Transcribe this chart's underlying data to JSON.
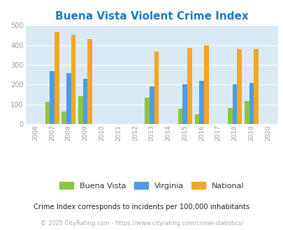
{
  "title": "Buena Vista Violent Crime Index",
  "years": [
    2006,
    2007,
    2008,
    2009,
    2010,
    2011,
    2012,
    2013,
    2014,
    2015,
    2016,
    2017,
    2018,
    2019,
    2020
  ],
  "buena_vista": [
    0,
    113,
    65,
    142,
    0,
    0,
    0,
    135,
    0,
    79,
    51,
    0,
    83,
    116,
    0
  ],
  "virginia": [
    0,
    270,
    259,
    228,
    0,
    0,
    0,
    190,
    0,
    200,
    220,
    0,
    202,
    210,
    0
  ],
  "national": [
    0,
    467,
    453,
    432,
    0,
    0,
    0,
    368,
    0,
    384,
    398,
    0,
    381,
    381,
    0
  ],
  "color_bv": "#8dc63f",
  "color_va": "#4d9de0",
  "color_nat": "#f5a623",
  "bg_color": "#daeaf5",
  "ylim": [
    0,
    500
  ],
  "yticks": [
    0,
    100,
    200,
    300,
    400,
    500
  ],
  "subtitle": "Crime Index corresponds to incidents per 100,000 inhabitants",
  "footer": "© 2025 CityRating.com - https://www.cityrating.com/crime-statistics/",
  "legend_labels": [
    "Buena Vista",
    "Virginia",
    "National"
  ],
  "bar_width": 0.28
}
